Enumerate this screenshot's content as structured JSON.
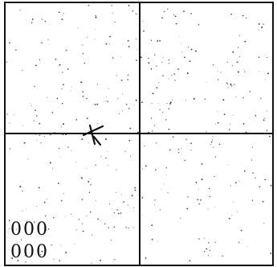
{
  "colors": {
    "ink": "#111111",
    "background": "#ffffff",
    "speckle": "#333333"
  },
  "grid": {
    "rows": 2,
    "columns": 2
  },
  "marker": {
    "icon": "cross-marker-icon"
  },
  "code": {
    "row_1": "000",
    "row_2": "000"
  }
}
